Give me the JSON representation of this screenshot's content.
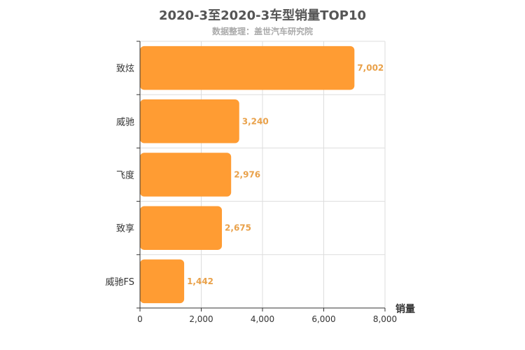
{
  "chart_data": {
    "type": "bar",
    "orientation": "horizontal",
    "title": "2020-3至2020-3车型销量TOP10",
    "subtitle": "数据整理：盖世汽车研究院",
    "xlabel": "销量",
    "ylabel": "",
    "categories": [
      "致炫",
      "威驰",
      "飞度",
      "致享",
      "威驰FS"
    ],
    "values": [
      7002,
      3240,
      2976,
      2675,
      1442
    ],
    "data_labels": [
      "7,002",
      "3,240",
      "2,976",
      "2,675",
      "1,442"
    ],
    "xlim": [
      0,
      8000
    ],
    "x_ticks": [
      0,
      2000,
      4000,
      6000,
      8000
    ],
    "x_tick_labels": [
      "0",
      "2,000",
      "4,000",
      "6,000",
      "8,000"
    ],
    "grid": true,
    "bar_color": "#ff9c33",
    "label_color": "#e9a14a"
  }
}
